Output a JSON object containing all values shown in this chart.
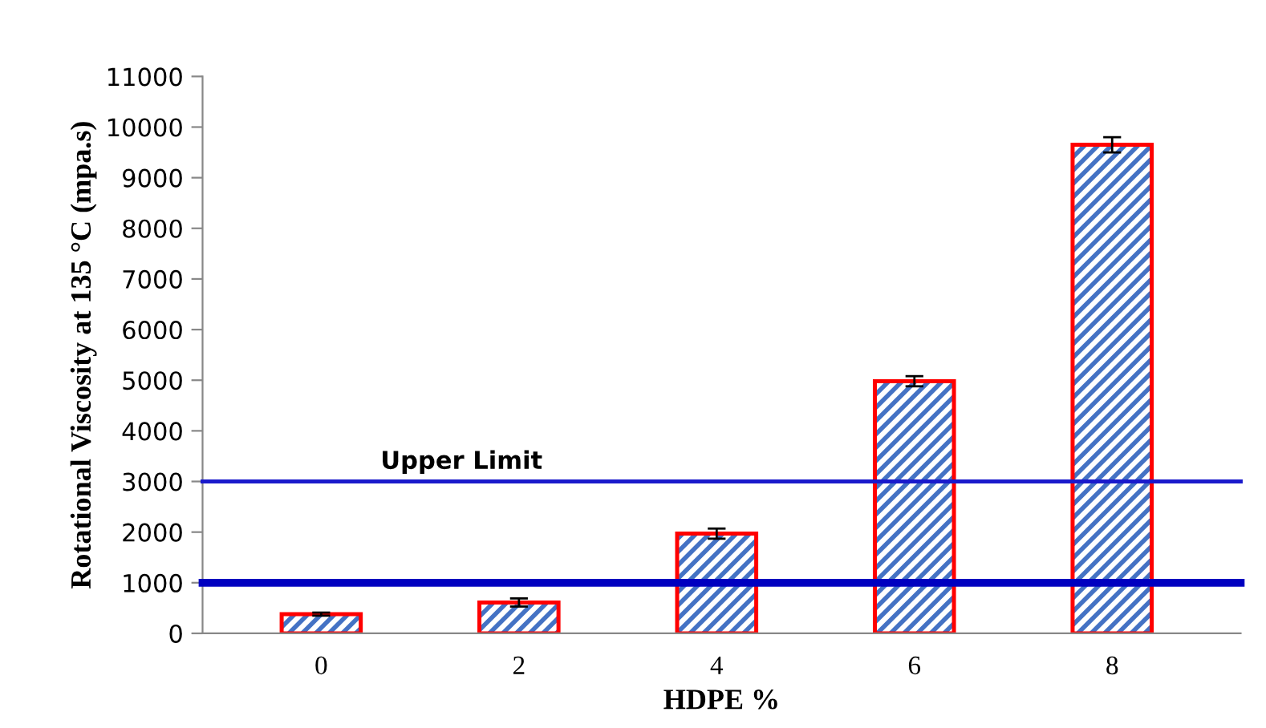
{
  "chart_data": {
    "type": "bar",
    "categories": [
      "0",
      "2",
      "4",
      "6",
      "8"
    ],
    "values": [
      380,
      610,
      1970,
      4980,
      9650
    ],
    "errors": [
      30,
      80,
      100,
      100,
      150
    ],
    "color": "#4472c4",
    "xlabel": "HDPE %",
    "ylabel": "Rotational Viscosity at 135 °C (mpa.s)",
    "ylim": [
      0,
      11000
    ],
    "yticks": [
      0,
      1000,
      2000,
      3000,
      4000,
      5000,
      6000,
      7000,
      8000,
      9000,
      10000,
      11000
    ],
    "ref_lines": [
      {
        "axis": "y",
        "value": 3000,
        "label": "Upper Limit",
        "color": "#1a1acc"
      },
      {
        "axis": "y",
        "value": 1000,
        "label": null,
        "color": "#0000c0"
      }
    ],
    "grid": false,
    "legend": false
  }
}
